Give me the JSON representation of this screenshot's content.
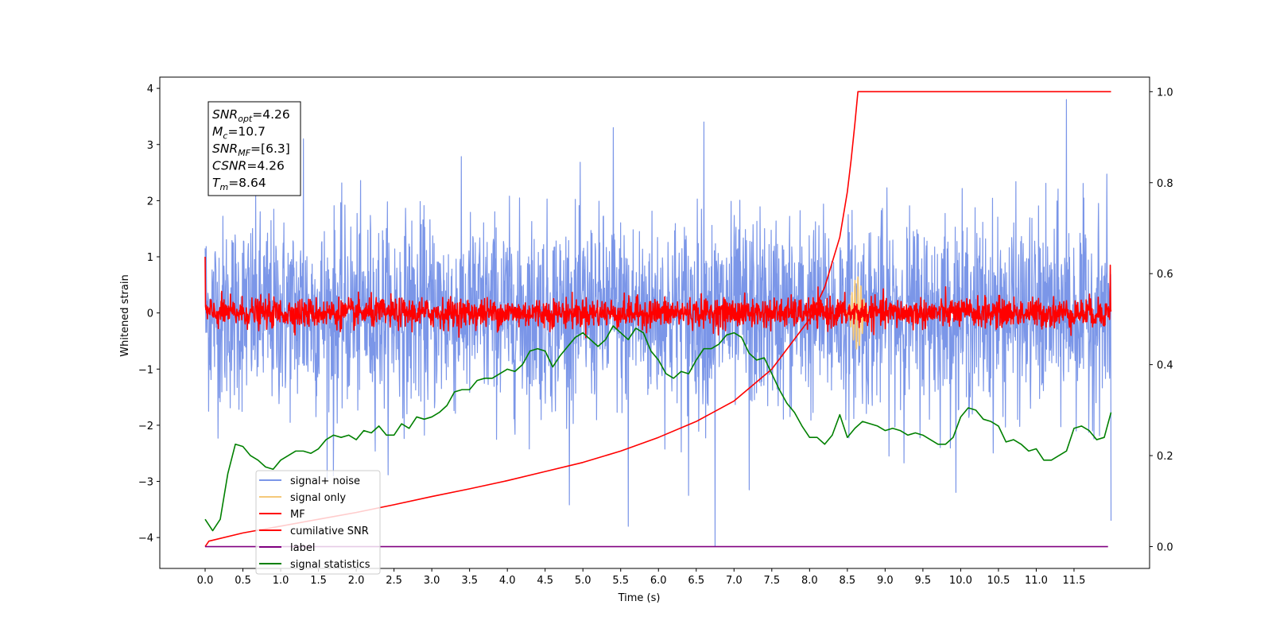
{
  "chart_data": {
    "type": "line",
    "title": "",
    "xlabel": "Time (s)",
    "ylabel": "Whitened strain",
    "ylabel_right": "",
    "xlim": [
      -0.6,
      12.5
    ],
    "ylim": [
      -4.55,
      4.2
    ],
    "ylim_right": [
      -0.048,
      1.032
    ],
    "x_ticks": [
      "0.0",
      "0.5",
      "1.0",
      "1.5",
      "2.0",
      "2.5",
      "3.0",
      "3.5",
      "4.0",
      "4.5",
      "5.0",
      "5.5",
      "6.0",
      "6.5",
      "7.0",
      "7.5",
      "8.0",
      "8.5",
      "9.0",
      "9.5",
      "10.0",
      "10.5",
      "11.0",
      "11.5"
    ],
    "y_ticks": [
      "4",
      "3",
      "2",
      "1",
      "0",
      "−1",
      "−2",
      "−3",
      "−4"
    ],
    "y_ticks_right": [
      "1.0",
      "0.8",
      "0.6",
      "0.4",
      "0.2",
      "0.0"
    ],
    "annotation": {
      "lines": [
        {
          "base": "SNR",
          "sub": "opt",
          "value": "=4.26"
        },
        {
          "base": "M",
          "sub": "c",
          "value": "=10.7"
        },
        {
          "base": "SNR",
          "sub": "MF",
          "value": "=[6.3]"
        },
        {
          "base": "CSNR",
          "sub": "",
          "value": "=4.26"
        },
        {
          "base": "T",
          "sub": "m",
          "value": "=8.64"
        }
      ]
    },
    "legend": {
      "placement": "lower-left",
      "entries": [
        {
          "label": "signal+ noise",
          "color": "#7b96e8"
        },
        {
          "label": "signal only",
          "color": "#f5c97a"
        },
        {
          "label": "MF",
          "color": "#ff0000"
        },
        {
          "label": "cumilative SNR",
          "color": "#ff0000"
        },
        {
          "label": "label",
          "color": "#800080"
        },
        {
          "label": "signal statistics",
          "color": "#008000"
        }
      ]
    },
    "series": [
      {
        "name": "signal+ noise",
        "axis": "left",
        "color": "#7b96e8",
        "kind": "noise",
        "x_range": [
          0.0,
          11.99
        ],
        "sigma": 0.85,
        "spikes": [
          [
            0.0,
            1.15
          ],
          [
            1.3,
            3.1
          ],
          [
            1.7,
            -2.9
          ],
          [
            5.4,
            3.3
          ],
          [
            5.6,
            -3.8
          ],
          [
            6.4,
            -3.25
          ],
          [
            6.6,
            3.4
          ],
          [
            6.75,
            -4.15
          ],
          [
            7.2,
            -3.15
          ],
          [
            11.4,
            3.8
          ],
          [
            11.99,
            -3.7
          ]
        ]
      },
      {
        "name": "signal only",
        "axis": "left",
        "color": "#f5c97a",
        "kind": "chirp",
        "center": 8.63,
        "width": 0.2,
        "amplitude": 0.65
      },
      {
        "name": "MF",
        "axis": "left",
        "color": "#ff0000",
        "kind": "noise",
        "x_range": [
          0.0,
          11.99
        ],
        "sigma": 0.13,
        "spikes": [
          [
            0.0,
            1.0
          ],
          [
            0.02,
            0.0
          ],
          [
            11.98,
            0.85
          ]
        ]
      },
      {
        "name": "cumilative SNR",
        "axis": "right",
        "color": "#ff0000",
        "kind": "line",
        "x": [
          0.0,
          0.05,
          0.5,
          1.0,
          1.5,
          2.0,
          2.5,
          3.0,
          3.5,
          4.0,
          4.5,
          5.0,
          5.5,
          6.0,
          6.5,
          7.0,
          7.5,
          8.0,
          8.2,
          8.4,
          8.5,
          8.55,
          8.6,
          8.64,
          11.99
        ],
        "y": [
          0.0,
          0.012,
          0.03,
          0.045,
          0.06,
          0.075,
          0.092,
          0.11,
          0.127,
          0.145,
          0.165,
          0.185,
          0.21,
          0.24,
          0.275,
          0.32,
          0.39,
          0.5,
          0.57,
          0.68,
          0.78,
          0.85,
          0.93,
          1.0,
          1.0
        ]
      },
      {
        "name": "label",
        "axis": "right",
        "color": "#800080",
        "kind": "line",
        "x": [
          0.0,
          11.95
        ],
        "y": [
          0.0,
          0.0
        ]
      },
      {
        "name": "signal statistics",
        "axis": "right",
        "color": "#008000",
        "kind": "line",
        "x": [
          0.0,
          0.1,
          0.2,
          0.3,
          0.4,
          0.5,
          0.6,
          0.7,
          0.8,
          0.9,
          1.0,
          1.1,
          1.2,
          1.3,
          1.4,
          1.5,
          1.6,
          1.7,
          1.8,
          1.9,
          2.0,
          2.1,
          2.2,
          2.3,
          2.4,
          2.5,
          2.6,
          2.7,
          2.8,
          2.9,
          3.0,
          3.1,
          3.2,
          3.3,
          3.4,
          3.5,
          3.6,
          3.7,
          3.8,
          3.9,
          4.0,
          4.1,
          4.2,
          4.3,
          4.4,
          4.5,
          4.6,
          4.7,
          4.8,
          4.9,
          5.0,
          5.1,
          5.2,
          5.3,
          5.4,
          5.5,
          5.6,
          5.7,
          5.8,
          5.9,
          6.0,
          6.1,
          6.2,
          6.3,
          6.4,
          6.5,
          6.6,
          6.7,
          6.8,
          6.9,
          7.0,
          7.1,
          7.2,
          7.3,
          7.4,
          7.5,
          7.6,
          7.7,
          7.8,
          7.9,
          8.0,
          8.1,
          8.2,
          8.3,
          8.4,
          8.5,
          8.6,
          8.7,
          8.8,
          8.9,
          9.0,
          9.1,
          9.2,
          9.3,
          9.4,
          9.5,
          9.6,
          9.7,
          9.8,
          9.9,
          10.0,
          10.1,
          10.2,
          10.3,
          10.4,
          10.5,
          10.6,
          10.7,
          10.8,
          10.9,
          11.0,
          11.1,
          11.2,
          11.3,
          11.4,
          11.5,
          11.6,
          11.7,
          11.8,
          11.9,
          11.99
        ],
        "y": [
          0.06,
          0.035,
          0.06,
          0.16,
          0.225,
          0.22,
          0.2,
          0.19,
          0.175,
          0.17,
          0.19,
          0.2,
          0.21,
          0.21,
          0.205,
          0.215,
          0.235,
          0.245,
          0.24,
          0.245,
          0.235,
          0.255,
          0.25,
          0.265,
          0.245,
          0.245,
          0.27,
          0.26,
          0.285,
          0.28,
          0.285,
          0.295,
          0.31,
          0.34,
          0.345,
          0.345,
          0.365,
          0.37,
          0.37,
          0.38,
          0.39,
          0.385,
          0.4,
          0.43,
          0.435,
          0.43,
          0.395,
          0.42,
          0.44,
          0.46,
          0.47,
          0.455,
          0.44,
          0.455,
          0.485,
          0.47,
          0.455,
          0.48,
          0.47,
          0.43,
          0.41,
          0.38,
          0.37,
          0.385,
          0.38,
          0.41,
          0.435,
          0.435,
          0.445,
          0.465,
          0.47,
          0.46,
          0.425,
          0.41,
          0.415,
          0.38,
          0.345,
          0.315,
          0.295,
          0.265,
          0.24,
          0.24,
          0.225,
          0.245,
          0.29,
          0.24,
          0.26,
          0.275,
          0.27,
          0.265,
          0.255,
          0.26,
          0.255,
          0.245,
          0.25,
          0.245,
          0.235,
          0.225,
          0.225,
          0.24,
          0.285,
          0.305,
          0.3,
          0.28,
          0.275,
          0.265,
          0.23,
          0.235,
          0.225,
          0.21,
          0.215,
          0.19,
          0.19,
          0.2,
          0.21,
          0.26,
          0.265,
          0.255,
          0.235,
          0.24,
          0.295
        ]
      }
    ]
  }
}
